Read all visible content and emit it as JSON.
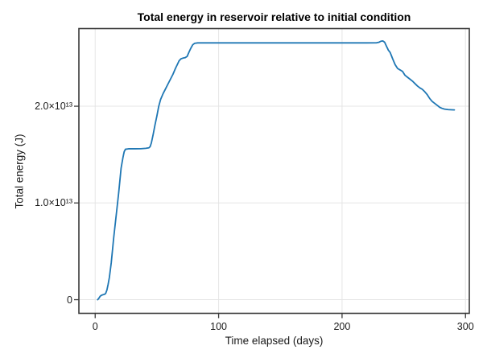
{
  "figure": {
    "background": "#ffffff"
  },
  "chart_data": {
    "type": "line",
    "title": "Total energy in reservoir relative to initial condition",
    "xlabel": "Time elapsed (days)",
    "ylabel": "Total energy (J)",
    "xlim": [
      -13.2,
      303.1
    ],
    "ylim": [
      -1410000000000.0,
      28030000000000.0
    ],
    "grid": true,
    "legend": false,
    "x_ticks": {
      "values": [
        0,
        100,
        200,
        300
      ],
      "labels": [
        "0",
        "100",
        "200",
        "300"
      ]
    },
    "y_ticks": {
      "values": [
        0,
        10000000000000.0,
        20000000000000.0
      ],
      "labels": [
        "0",
        "1.0×10¹³",
        "2.0×10¹³"
      ]
    },
    "colors": {
      "line": "#1f77b4",
      "grid": "#e5e5e5",
      "frame": "#3a3a3a",
      "text": "#1b1b1b"
    },
    "series": [
      {
        "name": "Total energy",
        "points": [
          [
            2,
            0
          ],
          [
            3,
            150000000000.0
          ],
          [
            4,
            350000000000.0
          ],
          [
            5,
            450000000000.0
          ],
          [
            6,
            500000000000.0
          ],
          [
            7.5,
            550000000000.0
          ],
          [
            8.5,
            650000000000.0
          ],
          [
            9.5,
            1000000000000.0
          ],
          [
            10.5,
            1600000000000.0
          ],
          [
            11.5,
            2300000000000.0
          ],
          [
            13,
            3800000000000.0
          ],
          [
            15,
            6400000000000.0
          ],
          [
            17,
            8700000000000.0
          ],
          [
            19,
            11000000000000.0
          ],
          [
            21,
            13600000000000.0
          ],
          [
            22.5,
            14700000000000.0
          ],
          [
            23.5,
            15300000000000.0
          ],
          [
            24.5,
            15550000000000.0
          ],
          [
            27,
            15600000000000.0
          ],
          [
            32,
            15600000000000.0
          ],
          [
            37,
            15610000000000.0
          ],
          [
            41,
            15650000000000.0
          ],
          [
            43.5,
            15700000000000.0
          ],
          [
            44.5,
            15820000000000.0
          ],
          [
            45.5,
            16200000000000.0
          ],
          [
            47,
            17100000000000.0
          ],
          [
            48.5,
            18100000000000.0
          ],
          [
            50,
            19000000000000.0
          ],
          [
            51.5,
            20000000000000.0
          ],
          [
            53,
            20700000000000.0
          ],
          [
            55,
            21300000000000.0
          ],
          [
            57,
            21800000000000.0
          ],
          [
            59,
            22300000000000.0
          ],
          [
            61,
            22800000000000.0
          ],
          [
            63,
            23300000000000.0
          ],
          [
            65,
            23900000000000.0
          ],
          [
            66.5,
            24300000000000.0
          ],
          [
            68,
            24700000000000.0
          ],
          [
            69.5,
            24900000000000.0
          ],
          [
            71,
            24970000000000.0
          ],
          [
            73,
            25030000000000.0
          ],
          [
            74.5,
            25150000000000.0
          ],
          [
            76,
            25600000000000.0
          ],
          [
            77.5,
            26000000000000.0
          ],
          [
            79,
            26350000000000.0
          ],
          [
            80.5,
            26500000000000.0
          ],
          [
            83,
            26550000000000.0
          ],
          [
            120,
            26550000000000.0
          ],
          [
            170,
            26550000000000.0
          ],
          [
            220,
            26550000000000.0
          ],
          [
            228,
            26560000000000.0
          ],
          [
            230,
            26620000000000.0
          ],
          [
            231.5,
            26720000000000.0
          ],
          [
            233,
            26750000000000.0
          ],
          [
            234.5,
            26620000000000.0
          ],
          [
            236,
            26200000000000.0
          ],
          [
            237.5,
            25800000000000.0
          ],
          [
            239,
            25550000000000.0
          ],
          [
            241,
            24900000000000.0
          ],
          [
            243,
            24300000000000.0
          ],
          [
            245,
            23900000000000.0
          ],
          [
            247,
            23750000000000.0
          ],
          [
            249,
            23600000000000.0
          ],
          [
            251,
            23200000000000.0
          ],
          [
            253,
            23000000000000.0
          ],
          [
            255,
            22800000000000.0
          ],
          [
            257,
            22600000000000.0
          ],
          [
            259,
            22350000000000.0
          ],
          [
            261,
            22100000000000.0
          ],
          [
            263,
            21900000000000.0
          ],
          [
            265,
            21750000000000.0
          ],
          [
            267,
            21500000000000.0
          ],
          [
            269,
            21200000000000.0
          ],
          [
            271,
            20800000000000.0
          ],
          [
            273,
            20500000000000.0
          ],
          [
            275,
            20300000000000.0
          ],
          [
            277,
            20100000000000.0
          ],
          [
            279,
            19900000000000.0
          ],
          [
            281,
            19780000000000.0
          ],
          [
            283,
            19700000000000.0
          ],
          [
            286,
            19650000000000.0
          ],
          [
            289,
            19630000000000.0
          ],
          [
            291,
            19620000000000.0
          ]
        ]
      }
    ]
  }
}
